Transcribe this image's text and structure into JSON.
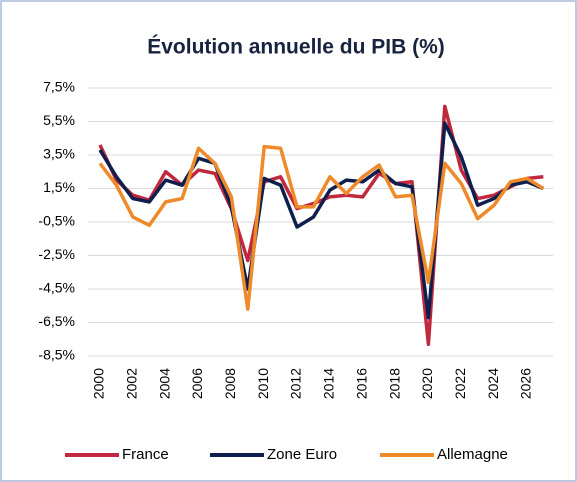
{
  "chart_data": {
    "type": "line",
    "title": "Évolution annuelle du PIB (%)",
    "categories": [
      "2000",
      null,
      "2002",
      null,
      "2004",
      null,
      "2006",
      null,
      "2008",
      null,
      "2010",
      null,
      "2012",
      null,
      "2014",
      null,
      "2016",
      null,
      "2018",
      null,
      "2020",
      null,
      "2022",
      null,
      "2024",
      null,
      "2026",
      null
    ],
    "series": [
      {
        "name": "France",
        "color": "#c0283d",
        "values": [
          4.1,
          2.0,
          1.1,
          0.8,
          2.5,
          1.7,
          2.6,
          2.4,
          0.3,
          -2.8,
          1.9,
          2.2,
          0.3,
          0.6,
          1.0,
          1.1,
          1.0,
          2.4,
          1.8,
          1.9,
          -7.8,
          6.4,
          2.6,
          0.9,
          1.1,
          1.6,
          2.1,
          2.2
        ]
      },
      {
        "name": "Zone Euro",
        "color": "#0f1f4d",
        "values": [
          3.8,
          2.2,
          0.9,
          0.7,
          2.0,
          1.7,
          3.3,
          3.0,
          0.4,
          -4.5,
          2.1,
          1.7,
          -0.8,
          -0.2,
          1.4,
          2.0,
          1.9,
          2.6,
          1.8,
          1.6,
          -6.2,
          5.4,
          3.4,
          0.5,
          0.9,
          1.7,
          1.9,
          1.5
        ]
      },
      {
        "name": "Allemagne",
        "color": "#ee8a2a",
        "values": [
          3.0,
          1.7,
          -0.2,
          -0.7,
          0.7,
          0.9,
          3.9,
          3.0,
          1.0,
          -5.7,
          4.0,
          3.9,
          0.4,
          0.4,
          2.2,
          1.2,
          2.2,
          2.9,
          1.0,
          1.1,
          -4.1,
          3.0,
          1.8,
          -0.3,
          0.5,
          1.9,
          2.1,
          1.5
        ]
      }
    ],
    "ylim": [
      -8.5,
      7.5
    ],
    "yticks": [
      {
        "value": -8.5,
        "label": "-8,5%"
      },
      {
        "value": -6.5,
        "label": "-6,5%"
      },
      {
        "value": -4.5,
        "label": "-4,5%"
      },
      {
        "value": -2.5,
        "label": "-2,5%"
      },
      {
        "value": -0.5,
        "label": "-0,5%"
      },
      {
        "value": 1.5,
        "label": "1,5%"
      },
      {
        "value": 3.5,
        "label": "3,5%"
      },
      {
        "value": 5.5,
        "label": "5,5%"
      },
      {
        "value": 7.5,
        "label": "7,5%"
      }
    ],
    "grid": true,
    "legend": "bottom"
  }
}
